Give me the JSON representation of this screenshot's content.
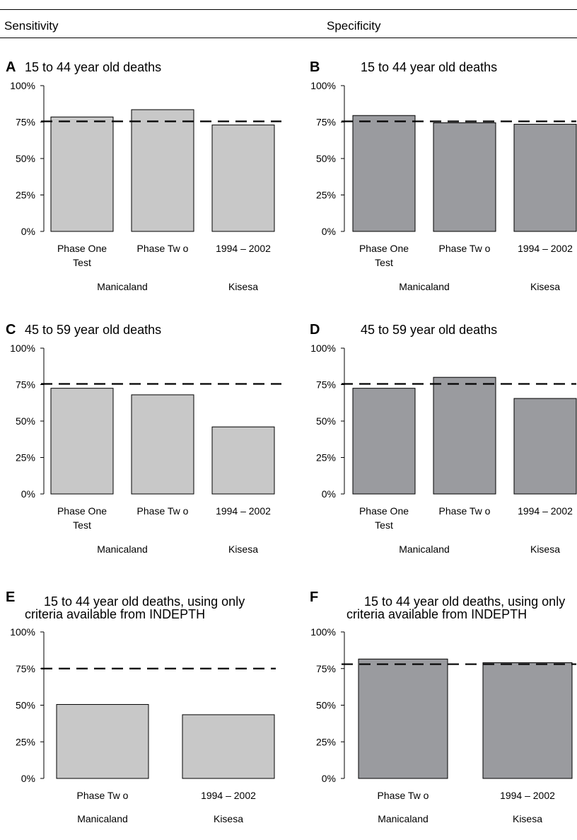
{
  "header": {
    "left_label": "Sensitivity",
    "right_label": "Specificity"
  },
  "colors": {
    "sensitivity_bar": "#c8c8c8",
    "specificity_bar": "#9a9b9f",
    "axis": "#000000",
    "reference_line": "#000000"
  },
  "chart_data": [
    {
      "id": "A",
      "letter": "A",
      "type": "bar",
      "title_lines": [
        "15 to 44 year old deaths"
      ],
      "categories": [
        "Phase One Test",
        "Phase Two",
        "1994 – 2002"
      ],
      "category_label_lines": [
        [
          "Phase One",
          "Test"
        ],
        [
          "Phase Tw o"
        ],
        [
          "1994 – 2002"
        ]
      ],
      "group_labels": [
        "Manicaland",
        "Kisesa"
      ],
      "values": [
        78.5,
        83.5,
        73
      ],
      "reference_line": 75.5,
      "ylim": [
        0,
        100
      ],
      "yticks": [
        "0%",
        "25%",
        "50%",
        "75%",
        "100%"
      ],
      "bar_color": "#c8c8c8"
    },
    {
      "id": "B",
      "letter": "B",
      "type": "bar",
      "title_lines": [
        "15 to 44 year old deaths"
      ],
      "categories": [
        "Phase One Test",
        "Phase Two",
        "1994 – 2002"
      ],
      "category_label_lines": [
        [
          "Phase One",
          "Test"
        ],
        [
          "Phase Tw o"
        ],
        [
          "1994 – 2002"
        ]
      ],
      "group_labels": [
        "Manicaland",
        "Kisesa"
      ],
      "values": [
        79.5,
        74.5,
        73.5
      ],
      "reference_line": 75.5,
      "ylim": [
        0,
        100
      ],
      "yticks": [
        "0%",
        "25%",
        "50%",
        "75%",
        "100%"
      ],
      "bar_color": "#9a9b9f"
    },
    {
      "id": "C",
      "letter": "C",
      "type": "bar",
      "title_lines": [
        "45 to 59 year old deaths"
      ],
      "categories": [
        "Phase One Test",
        "Phase Two",
        "1994 – 2002"
      ],
      "category_label_lines": [
        [
          "Phase One",
          "Test"
        ],
        [
          "Phase Tw o"
        ],
        [
          "1994 – 2002"
        ]
      ],
      "group_labels": [
        "Manicaland",
        "Kisesa"
      ],
      "values": [
        72.5,
        68,
        46
      ],
      "reference_line": 75.5,
      "ylim": [
        0,
        100
      ],
      "yticks": [
        "0%",
        "25%",
        "50%",
        "75%",
        "100%"
      ],
      "bar_color": "#c8c8c8"
    },
    {
      "id": "D",
      "letter": "D",
      "type": "bar",
      "title_lines": [
        "45 to 59 year old deaths"
      ],
      "categories": [
        "Phase One Test",
        "Phase Two",
        "1994 – 2002"
      ],
      "category_label_lines": [
        [
          "Phase One",
          "Test"
        ],
        [
          "Phase Tw o"
        ],
        [
          "1994 – 2002"
        ]
      ],
      "group_labels": [
        "Manicaland",
        "Kisesa"
      ],
      "values": [
        72.5,
        80,
        65.5
      ],
      "reference_line": 75.5,
      "ylim": [
        0,
        100
      ],
      "yticks": [
        "0%",
        "25%",
        "50%",
        "75%",
        "100%"
      ],
      "bar_color": "#9a9b9f"
    },
    {
      "id": "E",
      "letter": "E",
      "type": "bar",
      "title_lines": [
        "15 to 44 year old deaths, using only",
        "criteria available from INDEPTH"
      ],
      "categories": [
        "Phase Two",
        "1994 – 2002"
      ],
      "category_label_lines": [
        [
          "Phase Tw o"
        ],
        [
          "1994 – 2002"
        ]
      ],
      "group_labels": [
        "Manicaland",
        "Kisesa"
      ],
      "values": [
        50.5,
        43.5
      ],
      "reference_line": 75,
      "ylim": [
        0,
        100
      ],
      "yticks": [
        "0%",
        "25%",
        "50%",
        "75%",
        "100%"
      ],
      "bar_color": "#c8c8c8"
    },
    {
      "id": "F",
      "letter": "F",
      "type": "bar",
      "title_lines": [
        "15 to 44 year old deaths, using only",
        "criteria available from INDEPTH"
      ],
      "categories": [
        "Phase Two",
        "1994 – 2002"
      ],
      "category_label_lines": [
        [
          "Phase Tw o"
        ],
        [
          "1994 – 2002"
        ]
      ],
      "group_labels": [
        "Manicaland",
        "Kisesa"
      ],
      "values": [
        81.5,
        79
      ],
      "reference_line": 78,
      "ylim": [
        0,
        100
      ],
      "yticks": [
        "0%",
        "25%",
        "50%",
        "75%",
        "100%"
      ],
      "bar_color": "#9a9b9f"
    }
  ]
}
